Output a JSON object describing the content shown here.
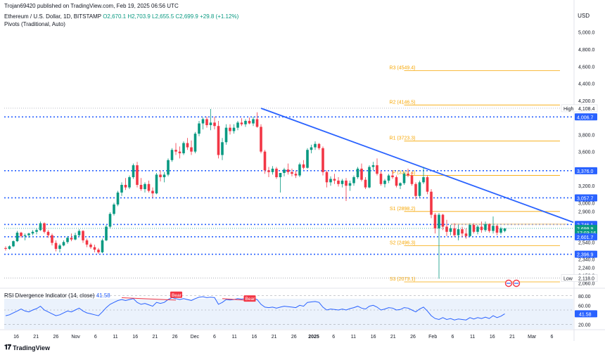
{
  "header": {
    "published": "Trojan69420 published on TradingView.com, Feb 19, 2025 06:56 UTC",
    "symbol": "Ethereum / U.S. Dollar, 1D, BITSTAMP",
    "ohlc": "O2,670.1 H2,703.9 L2,655.5 C2,699.9 +29.8 (+1.12%)",
    "indicator": "Pivots (Traditional, Auto)",
    "currency": "USD"
  },
  "footer": {
    "brand": "TradingView"
  },
  "chart_data": [
    {
      "type": "candlestick",
      "ylim": [
        2040,
        5080
      ],
      "y_ticks": [
        "5,000.0",
        "4,800.0",
        "4,600.0",
        "4,400.0",
        "4,200.0",
        "4,000.0",
        "3,800.0",
        "3,600.0",
        "3,400.0",
        "3,200.0",
        "3,000.0",
        "2,900.0",
        "2,740.0",
        "2,540.0",
        "2,340.0",
        "2,240.0",
        "2,150.0",
        "2,060.0"
      ],
      "y_tick_values": [
        5000,
        4800,
        4600,
        4400,
        4200,
        4000,
        3800,
        3600,
        3400,
        3200,
        3000,
        2900,
        2740,
        2540,
        2340,
        2240,
        2150,
        2060
      ],
      "x_ticks": [
        "16",
        "21",
        "26",
        "Nov",
        "6",
        "11",
        "16",
        "21",
        "26",
        "Dec",
        "6",
        "11",
        "16",
        "21",
        "26",
        "2025",
        "6",
        "11",
        "16",
        "21",
        "26",
        "Feb",
        "6",
        "11",
        "16",
        "21",
        "Mar",
        "6"
      ],
      "pivots": [
        {
          "label": "R3 (4549.4)",
          "value": 4549.4
        },
        {
          "label": "R2 (4146.5)",
          "value": 4146.5
        },
        {
          "label": "R1 (3723.3)",
          "value": 3723.3
        },
        {
          "label": "P (3321.4)",
          "value": 3321.4
        },
        {
          "label": "S1 (2898.2)",
          "value": 2898.2
        },
        {
          "label": "S2 (2496.3)",
          "value": 2496.3
        },
        {
          "label": "S3 (2073.1)",
          "value": 2073.1
        }
      ],
      "horizontal_levels": [
        4006.7,
        3376.0,
        3057.7,
        2746.1,
        2601.7,
        2396.9
      ],
      "price_badges": [
        {
          "label": "4,006.7",
          "value": 4006.7
        },
        {
          "label": "3,376.0",
          "value": 3376.0
        },
        {
          "label": "3,057.7",
          "value": 3057.7
        },
        {
          "label": "2,746.1",
          "value": 2746.1
        },
        {
          "label": "2,699.9",
          "value": 2699.9,
          "kind": "last"
        },
        {
          "label": "17:03:16",
          "value": 2650,
          "kind": "countdown"
        },
        {
          "label": "2,601.7",
          "value": 2601.7
        },
        {
          "label": "2,396.9",
          "value": 2396.9
        }
      ],
      "high": {
        "label": "High",
        "value": "4,108.4",
        "price": 4108.4
      },
      "low": {
        "label": "Low",
        "value": "2,118.0",
        "price": 2118.0
      },
      "trendline": {
        "from": {
          "bar": 66,
          "price": 4108
        },
        "to": {
          "bar": 145,
          "price": 2800
        }
      },
      "candles": [
        [
          2470,
          2490,
          2440,
          2460
        ],
        [
          2460,
          2500,
          2450,
          2490
        ],
        [
          2490,
          2560,
          2480,
          2550
        ],
        [
          2550,
          2670,
          2540,
          2650
        ],
        [
          2650,
          2660,
          2590,
          2610
        ],
        [
          2610,
          2640,
          2560,
          2620
        ],
        [
          2620,
          2650,
          2590,
          2640
        ],
        [
          2640,
          2680,
          2620,
          2660
        ],
        [
          2660,
          2700,
          2630,
          2680
        ],
        [
          2680,
          2780,
          2670,
          2760
        ],
        [
          2760,
          2770,
          2640,
          2660
        ],
        [
          2660,
          2680,
          2590,
          2620
        ],
        [
          2620,
          2640,
          2500,
          2530
        ],
        [
          2530,
          2560,
          2430,
          2460
        ],
        [
          2460,
          2520,
          2420,
          2500
        ],
        [
          2500,
          2560,
          2490,
          2540
        ],
        [
          2540,
          2610,
          2520,
          2590
        ],
        [
          2590,
          2640,
          2550,
          2570
        ],
        [
          2570,
          2650,
          2560,
          2620
        ],
        [
          2620,
          2690,
          2600,
          2670
        ],
        [
          2670,
          2680,
          2530,
          2560
        ],
        [
          2560,
          2580,
          2480,
          2510
        ],
        [
          2510,
          2530,
          2460,
          2480
        ],
        [
          2480,
          2510,
          2420,
          2450
        ],
        [
          2450,
          2470,
          2400,
          2420
        ],
        [
          2420,
          2580,
          2410,
          2560
        ],
        [
          2560,
          2740,
          2550,
          2720
        ],
        [
          2720,
          2890,
          2700,
          2870
        ],
        [
          2870,
          3000,
          2850,
          2980
        ],
        [
          2980,
          3140,
          2960,
          3120
        ],
        [
          3120,
          3240,
          3080,
          3210
        ],
        [
          3210,
          3290,
          3150,
          3180
        ],
        [
          3180,
          3320,
          3160,
          3300
        ],
        [
          3300,
          3460,
          3280,
          3440
        ],
        [
          3440,
          3480,
          3180,
          3210
        ],
        [
          3210,
          3290,
          3140,
          3160
        ],
        [
          3160,
          3240,
          3120,
          3220
        ],
        [
          3220,
          3260,
          3120,
          3140
        ],
        [
          3140,
          3180,
          3060,
          3110
        ],
        [
          3110,
          3350,
          3100,
          3330
        ],
        [
          3330,
          3380,
          3250,
          3300
        ],
        [
          3300,
          3360,
          3240,
          3330
        ],
        [
          3330,
          3520,
          3310,
          3500
        ],
        [
          3500,
          3640,
          3480,
          3620
        ],
        [
          3620,
          3700,
          3560,
          3600
        ],
        [
          3600,
          3660,
          3520,
          3580
        ],
        [
          3580,
          3720,
          3560,
          3700
        ],
        [
          3700,
          3760,
          3620,
          3650
        ],
        [
          3650,
          3730,
          3560,
          3600
        ],
        [
          3600,
          3830,
          3580,
          3810
        ],
        [
          3810,
          3960,
          3780,
          3930
        ],
        [
          3930,
          4000,
          3860,
          3980
        ],
        [
          3980,
          4010,
          3880,
          3910
        ],
        [
          3910,
          4100,
          3850,
          3940
        ],
        [
          3940,
          4010,
          3860,
          3900
        ],
        [
          3900,
          3960,
          3520,
          3560
        ],
        [
          3560,
          3760,
          3500,
          3710
        ],
        [
          3710,
          3920,
          3680,
          3880
        ],
        [
          3880,
          3920,
          3800,
          3840
        ],
        [
          3840,
          3920,
          3810,
          3880
        ],
        [
          3880,
          3960,
          3850,
          3940
        ],
        [
          3940,
          3990,
          3900,
          3920
        ],
        [
          3920,
          3980,
          3890,
          3960
        ],
        [
          3960,
          4000,
          3920,
          3930
        ],
        [
          3930,
          4010,
          3900,
          3980
        ],
        [
          3980,
          4060,
          3880,
          3890
        ],
        [
          3890,
          3920,
          3580,
          3600
        ],
        [
          3600,
          3620,
          3340,
          3380
        ],
        [
          3380,
          3420,
          3300,
          3360
        ],
        [
          3360,
          3430,
          3330,
          3400
        ],
        [
          3400,
          3420,
          3280,
          3300
        ],
        [
          3300,
          3320,
          3120,
          3350
        ],
        [
          3350,
          3410,
          3310,
          3390
        ],
        [
          3390,
          3460,
          3330,
          3360
        ],
        [
          3360,
          3400,
          3310,
          3340
        ],
        [
          3340,
          3380,
          3290,
          3320
        ],
        [
          3320,
          3470,
          3300,
          3450
        ],
        [
          3450,
          3500,
          3390,
          3410
        ],
        [
          3410,
          3640,
          3400,
          3620
        ],
        [
          3620,
          3680,
          3580,
          3650
        ],
        [
          3650,
          3720,
          3620,
          3690
        ],
        [
          3690,
          3700,
          3620,
          3640
        ],
        [
          3640,
          3660,
          3320,
          3360
        ],
        [
          3360,
          3380,
          3180,
          3240
        ],
        [
          3240,
          3310,
          3200,
          3280
        ],
        [
          3280,
          3340,
          3220,
          3260
        ],
        [
          3260,
          3300,
          3190,
          3220
        ],
        [
          3220,
          3280,
          3180,
          3260
        ],
        [
          3260,
          3290,
          3020,
          3200
        ],
        [
          3200,
          3260,
          3140,
          3230
        ],
        [
          3230,
          3320,
          3200,
          3300
        ],
        [
          3300,
          3420,
          3280,
          3400
        ],
        [
          3400,
          3460,
          3250,
          3270
        ],
        [
          3270,
          3300,
          3160,
          3180
        ],
        [
          3180,
          3440,
          3170,
          3420
        ],
        [
          3420,
          3480,
          3380,
          3440
        ],
        [
          3440,
          3520,
          3320,
          3340
        ],
        [
          3340,
          3370,
          3200,
          3220
        ],
        [
          3220,
          3280,
          3180,
          3260
        ],
        [
          3260,
          3340,
          3230,
          3320
        ],
        [
          3320,
          3380,
          3280,
          3300
        ],
        [
          3300,
          3320,
          3180,
          3200
        ],
        [
          3200,
          3240,
          3160,
          3230
        ],
        [
          3230,
          3360,
          3210,
          3340
        ],
        [
          3340,
          3400,
          3300,
          3320
        ],
        [
          3320,
          3360,
          3200,
          3220
        ],
        [
          3220,
          3240,
          3040,
          3080
        ],
        [
          3080,
          3260,
          3060,
          3240
        ],
        [
          3240,
          3420,
          3220,
          3300
        ],
        [
          3300,
          3320,
          3100,
          3130
        ],
        [
          3130,
          3160,
          2820,
          2860
        ],
        [
          2860,
          2880,
          2640,
          2700
        ],
        [
          2700,
          2880,
          2110,
          2860
        ],
        [
          2860,
          2870,
          2680,
          2720
        ],
        [
          2720,
          2800,
          2610,
          2660
        ],
        [
          2660,
          2740,
          2620,
          2700
        ],
        [
          2700,
          2760,
          2600,
          2620
        ],
        [
          2620,
          2740,
          2560,
          2690
        ],
        [
          2690,
          2720,
          2600,
          2640
        ],
        [
          2640,
          2700,
          2580,
          2610
        ],
        [
          2610,
          2760,
          2600,
          2740
        ],
        [
          2740,
          2760,
          2640,
          2660
        ],
        [
          2660,
          2740,
          2630,
          2720
        ],
        [
          2720,
          2780,
          2650,
          2680
        ],
        [
          2680,
          2780,
          2660,
          2750
        ],
        [
          2750,
          2760,
          2650,
          2670
        ],
        [
          2670,
          2840,
          2640,
          2730
        ],
        [
          2730,
          2740,
          2620,
          2650
        ],
        [
          2650,
          2720,
          2630,
          2700
        ],
        [
          2670,
          2704,
          2655,
          2700
        ]
      ]
    },
    {
      "type": "line",
      "title": "RSI Divergence Indicator (14, close)",
      "value_label": "41.58",
      "ylim": [
        10,
        90
      ],
      "y_ticks": [
        "80.00",
        "60.00",
        "41.58",
        "20.00"
      ],
      "y_tick_values": [
        80,
        60,
        42,
        20
      ],
      "annotations": [
        {
          "label": "Bear"
        },
        {
          "label": "Bear"
        }
      ],
      "values": [
        38,
        40,
        44,
        48,
        52,
        48,
        46,
        50,
        53,
        58,
        50,
        46,
        42,
        38,
        40,
        44,
        48,
        46,
        50,
        54,
        48,
        44,
        42,
        40,
        38,
        46,
        55,
        62,
        66,
        70,
        72,
        70,
        72,
        74,
        66,
        62,
        64,
        61,
        58,
        66,
        64,
        66,
        72,
        76,
        74,
        72,
        74,
        72,
        70,
        74,
        77,
        78,
        76,
        77,
        76,
        62,
        66,
        72,
        71,
        72,
        74,
        73,
        74,
        72,
        74,
        72,
        62,
        56,
        55,
        56,
        54,
        56,
        58,
        57,
        56,
        55,
        60,
        58,
        66,
        67,
        68,
        66,
        56,
        50,
        52,
        51,
        50,
        52,
        50,
        53,
        55,
        58,
        54,
        52,
        58,
        60,
        56,
        50,
        52,
        55,
        54,
        50,
        51,
        55,
        54,
        50,
        46,
        52,
        56,
        48,
        38,
        32,
        30,
        34,
        30,
        32,
        29,
        31,
        30,
        29,
        34,
        31,
        34,
        32,
        35,
        32,
        38,
        34,
        37,
        42
      ]
    }
  ]
}
